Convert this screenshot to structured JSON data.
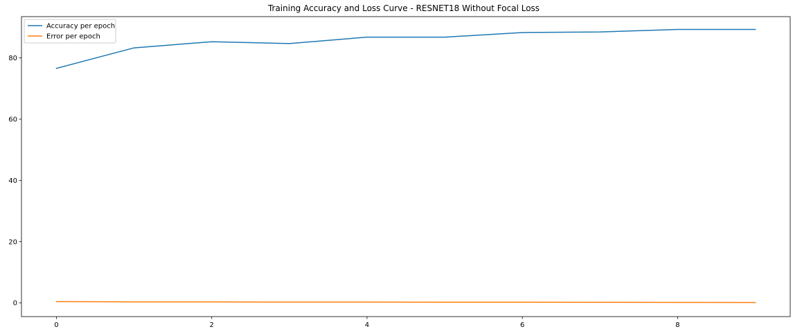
{
  "chart_data": {
    "type": "line",
    "title": "Training Accuracy and Loss Curve - RESNET18 Without Focal Loss",
    "xlabel": "",
    "ylabel": "",
    "x": [
      0,
      1,
      2,
      3,
      4,
      5,
      6,
      7,
      8,
      9
    ],
    "x_ticks": [
      0,
      2,
      4,
      6,
      8
    ],
    "y_ticks": [
      0,
      20,
      40,
      60,
      80
    ],
    "xlim": [
      -0.45,
      9.45
    ],
    "ylim": [
      -4.5,
      93.5
    ],
    "grid": false,
    "legend_position": "upper-left",
    "series": [
      {
        "name": "Accuracy per epoch",
        "color": "#1f77b4",
        "values": [
          76.6,
          83.3,
          85.3,
          84.7,
          86.8,
          86.8,
          88.3,
          88.5,
          89.3,
          89.3
        ]
      },
      {
        "name": "Error per epoch",
        "color": "#ff7f0e",
        "values": [
          0.4,
          0.3,
          0.3,
          0.25,
          0.25,
          0.2,
          0.2,
          0.18,
          0.15,
          0.1
        ]
      }
    ]
  }
}
